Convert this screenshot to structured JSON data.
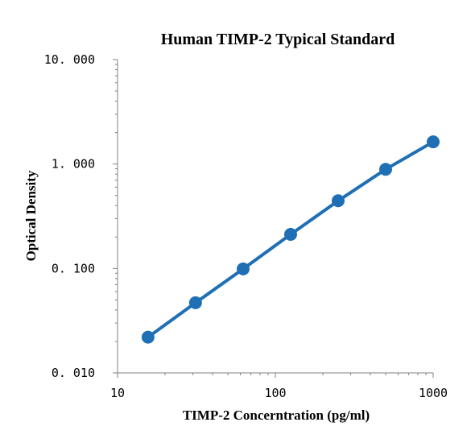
{
  "chart_data": {
    "type": "scatter",
    "title": "Human TIMP-2 Typical Standard",
    "xlabel": "TIMP-2 Concerntration (pg/ml)",
    "ylabel": "Optical Density",
    "xscale": "log",
    "yscale": "log",
    "xlim": [
      10,
      1000
    ],
    "ylim": [
      0.01,
      10
    ],
    "xticks": [
      "10",
      "100",
      "1000"
    ],
    "yticks": [
      "10. 000",
      "1. 000",
      "0. 100",
      "0. 010"
    ],
    "grid": false,
    "legend": "none",
    "color": "#1f6fb5",
    "series": [
      {
        "x": [
          15.6,
          31.2,
          62.5,
          125,
          250,
          500,
          1000
        ],
        "y": [
          0.022,
          0.047,
          0.099,
          0.212,
          0.445,
          0.89,
          1.63
        ]
      }
    ]
  }
}
